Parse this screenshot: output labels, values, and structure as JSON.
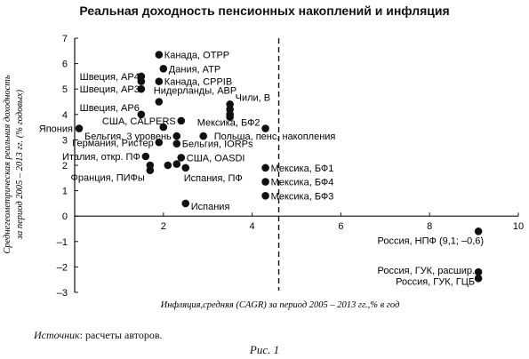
{
  "page": {
    "source_label": "Источник",
    "source_text": ": расчеты авторов.",
    "caption": "Рис. 1"
  },
  "chart_data": {
    "type": "scatter",
    "title": "Реальная доходность пенсионных накоплений и инфляция",
    "xlabel": "Инфляция,средняя (CAGR) за период 2005 – 2013 гг.,% в год",
    "ylabel_lines": [
      "Среднегеометрическая реальная доходность",
      "за период 2005 – 2013 гг. (% годовых)"
    ],
    "xlim": [
      0,
      10
    ],
    "ylim": [
      -3,
      7
    ],
    "x_ticks": [
      2,
      4,
      6,
      8,
      10
    ],
    "y_ticks": [
      -3,
      -2,
      -1,
      0,
      1,
      2,
      3,
      4,
      5,
      6,
      7
    ],
    "grid": false,
    "reference_line": {
      "x": 4.6,
      "style": "dashed"
    },
    "points": [
      {
        "label": "Канада, OTPP",
        "x": 1.9,
        "y": 6.35
      },
      {
        "label": "Дания, ATP",
        "x": 2.0,
        "y": 5.8
      },
      {
        "label": "Швеция, AP4",
        "x": 1.5,
        "y": 5.5
      },
      {
        "label": "Канада, CPPIB",
        "x": 1.9,
        "y": 5.3
      },
      {
        "label": "Швеция, AP3",
        "x": 1.5,
        "y": 5.0
      },
      {
        "label": "Нидерланды, ABP",
        "x": 1.9,
        "y": 4.5
      },
      {
        "label": "Чили, B",
        "x": 3.5,
        "y": 4.4
      },
      {
        "label": "Швеция, AP6",
        "x": 1.5,
        "y": 4.0
      },
      {
        "label": "Япония",
        "x": 0.1,
        "y": 3.45
      },
      {
        "label": "США, CALPERS",
        "x": 2.4,
        "y": 3.75
      },
      {
        "label": "Мексика, БФ2",
        "x": 4.3,
        "y": 3.45
      },
      {
        "label": "Бельгия, 3 уровень",
        "x": 2.3,
        "y": 3.15
      },
      {
        "label": "Польша, пенс. накопления",
        "x": 2.9,
        "y": 3.15
      },
      {
        "label": "Германия, Ристер",
        "x": 1.9,
        "y": 2.9
      },
      {
        "label": "Бельгия, IORPs",
        "x": 2.3,
        "y": 2.85
      },
      {
        "label": "Италия, откр. ПФ",
        "x": 1.6,
        "y": 2.35
      },
      {
        "label": "США, OASDI",
        "x": 2.4,
        "y": 2.3
      },
      {
        "label": "Мексика, БФ1",
        "x": 4.3,
        "y": 1.9
      },
      {
        "label": "Франция, ПИФы",
        "x": 1.7,
        "y": 1.8
      },
      {
        "label": "Испания, ПФ",
        "x": 2.5,
        "y": 1.9
      },
      {
        "label": "Мексика, БФ4",
        "x": 4.3,
        "y": 1.35
      },
      {
        "label": "Мексика, БФ3",
        "x": 4.3,
        "y": 0.8
      },
      {
        "label": "Испания",
        "x": 2.5,
        "y": 0.5
      },
      {
        "label": "Россия, НПФ (9,1; –0,6)",
        "x": 9.1,
        "y": -0.6
      },
      {
        "label": "Россия, ГУК, расшир.",
        "x": 9.1,
        "y": -2.2
      },
      {
        "label": "Россия, ГУК, ГЦБ",
        "x": 9.1,
        "y": -2.45
      }
    ],
    "unlabeled_points": [
      {
        "x": 1.5,
        "y": 5.3
      },
      {
        "x": 3.5,
        "y": 4.2
      },
      {
        "x": 3.5,
        "y": 4.0
      },
      {
        "x": 3.5,
        "y": 3.9
      },
      {
        "x": 1.7,
        "y": 2.0
      },
      {
        "x": 2.1,
        "y": 2.0
      },
      {
        "x": 2.3,
        "y": 2.05
      },
      {
        "x": 2.0,
        "y": 3.5
      }
    ]
  }
}
